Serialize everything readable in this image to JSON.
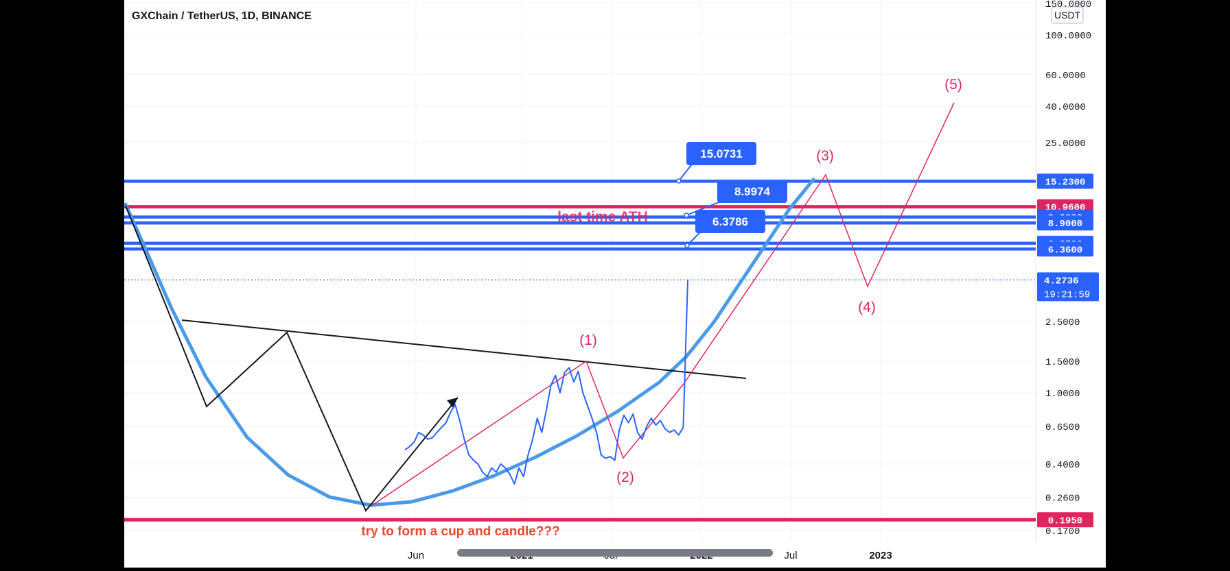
{
  "chart_title": "GXChain / TetherUS, 1D, BINANCE",
  "currency_badge": "USDT",
  "chart_data": {
    "type": "line",
    "title": "GXChain / TetherUS, 1D, BINANCE",
    "yscale": "log",
    "ylim": [
      0.15,
      150
    ],
    "y_ticks": [
      "150.0000",
      "100.0000",
      "60.0000",
      "40.0000",
      "25.0000",
      "2.5000",
      "1.5000",
      "1.0000",
      "0.6500",
      "0.4000",
      "0.2600",
      "0.1700"
    ],
    "x_ticks": [
      "Jun",
      "2021",
      "Jul",
      "2022",
      "Jul",
      "2023"
    ],
    "grid": true,
    "series": [
      {
        "values": [
          [
            0.48,
            0.5,
            0.53,
            0.6,
            0.58,
            0.55,
            0.56,
            0.6,
            0.64,
            0.68,
            0.78,
            0.86,
            0.7,
            0.55,
            0.45,
            0.42,
            0.4,
            0.36,
            0.34,
            0.38,
            0.36,
            0.4,
            0.38,
            0.35,
            0.31,
            0.38,
            0.34,
            0.45,
            0.55,
            0.72,
            0.6,
            0.8,
            1.1,
            1.25,
            1.0,
            1.3,
            1.38,
            1.15,
            1.32,
            1.0,
            0.85,
            0.72,
            0.6,
            0.45,
            0.43,
            0.44,
            0.42,
            0.62,
            0.75,
            0.68,
            0.76,
            0.6,
            0.55,
            0.65,
            0.72,
            0.66,
            0.7,
            0.63,
            0.6,
            0.62,
            0.58,
            0.64,
            4.27
          ]
        ]
      }
    ],
    "current_price": "4.2736",
    "countdown": "19:21:59",
    "price_levels": [
      {
        "value": 15.23,
        "label": "15.2300",
        "color": "#2962ff"
      },
      {
        "value": 10.96,
        "label": "10.9600",
        "color": "#e0245e"
      },
      {
        "value": 9.6,
        "label": "9.6000",
        "color": "#2962ff"
      },
      {
        "value": 8.9,
        "label": "8.9000",
        "color": "#2962ff"
      },
      {
        "value": 6.85,
        "label": "6.8500",
        "color": "#2962ff"
      },
      {
        "value": 6.36,
        "label": "6.3600",
        "color": "#2962ff"
      },
      {
        "value": 0.195,
        "label": "0.1950",
        "color": "#e0245e"
      }
    ],
    "callouts": [
      "15.0731",
      "8.9974",
      "6.3786"
    ],
    "wave_labels": [
      "(1)",
      "(2)",
      "(3)",
      "(4)",
      "(5)"
    ],
    "annotations": [
      "last time ATH",
      "try to form a cup and candle???"
    ]
  }
}
